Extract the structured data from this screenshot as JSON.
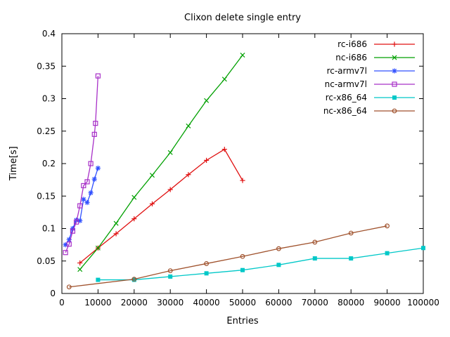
{
  "chart_data": {
    "type": "line",
    "title": "Clixon delete single entry",
    "xlabel": "Entries",
    "ylabel": "Time[s]",
    "xlim": [
      0,
      100000
    ],
    "ylim": [
      0,
      0.4
    ],
    "xticks": [
      0,
      10000,
      20000,
      30000,
      40000,
      50000,
      60000,
      70000,
      80000,
      90000,
      100000
    ],
    "yticks": [
      0,
      0.05,
      0.1,
      0.15,
      0.2,
      0.25,
      0.3,
      0.35,
      0.4
    ],
    "grid": false,
    "legend_position": "top-right-inside",
    "axis_color": "#000000",
    "background": "#ffffff",
    "series": [
      {
        "name": "rc-i686",
        "color": "#e01010",
        "marker": "plus",
        "x": [
          5000,
          10000,
          15000,
          20000,
          25000,
          30000,
          35000,
          40000,
          45000,
          50000
        ],
        "y": [
          0.047,
          0.07,
          0.092,
          0.115,
          0.138,
          0.16,
          0.183,
          0.205,
          0.222,
          0.174
        ]
      },
      {
        "name": "nc-i686",
        "color": "#00a000",
        "marker": "cross",
        "x": [
          5000,
          10000,
          15000,
          20000,
          25000,
          30000,
          35000,
          40000,
          45000,
          50000
        ],
        "y": [
          0.037,
          0.07,
          0.108,
          0.148,
          0.182,
          0.217,
          0.258,
          0.297,
          0.33,
          0.367
        ]
      },
      {
        "name": "rc-armv7l",
        "color": "#3050ff",
        "marker": "asterisk",
        "x": [
          1000,
          2000,
          3000,
          4000,
          5000,
          6000,
          7000,
          8000,
          9000,
          10000
        ],
        "y": [
          0.075,
          0.083,
          0.1,
          0.113,
          0.112,
          0.145,
          0.14,
          0.155,
          0.176,
          0.193
        ]
      },
      {
        "name": "nc-armv7l",
        "color": "#a830c8",
        "marker": "square-open",
        "x": [
          1000,
          2000,
          3000,
          4000,
          5000,
          6000,
          7000,
          8000,
          9000,
          9300,
          10000
        ],
        "y": [
          0.063,
          0.076,
          0.096,
          0.11,
          0.135,
          0.166,
          0.172,
          0.2,
          0.245,
          0.262,
          0.335
        ]
      },
      {
        "name": "rc-x86_64",
        "color": "#00c8c8",
        "marker": "square-filled",
        "x": [
          10000,
          20000,
          30000,
          40000,
          50000,
          60000,
          70000,
          80000,
          90000,
          100000
        ],
        "y": [
          0.021,
          0.021,
          0.026,
          0.031,
          0.036,
          0.044,
          0.054,
          0.054,
          0.062,
          0.07
        ]
      },
      {
        "name": "nc-x86_64",
        "color": "#a0522d",
        "marker": "circle-open",
        "x": [
          2000,
          20000,
          30000,
          40000,
          50000,
          60000,
          70000,
          80000,
          90000
        ],
        "y": [
          0.01,
          0.022,
          0.035,
          0.046,
          0.057,
          0.069,
          0.079,
          0.093,
          0.104
        ]
      }
    ]
  }
}
